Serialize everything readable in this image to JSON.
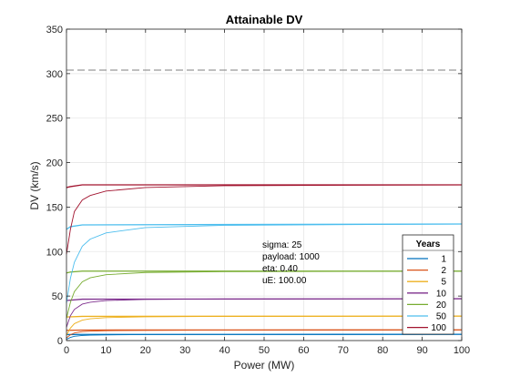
{
  "chart_data": {
    "type": "line",
    "title": "Attainable DV",
    "xlabel": "Power (MW)",
    "ylabel": "DV (km/s)",
    "xlim": [
      0,
      100
    ],
    "ylim": [
      0,
      350
    ],
    "xticks": [
      0,
      10,
      20,
      30,
      40,
      50,
      60,
      70,
      80,
      90,
      100
    ],
    "yticks": [
      0,
      50,
      100,
      150,
      200,
      250,
      300,
      350
    ],
    "xtick_labels": [
      "0",
      "10",
      "20",
      "30",
      "40",
      "50",
      "60",
      "70",
      "80",
      "90",
      "100"
    ],
    "ytick_labels": [
      "0",
      "50",
      "100",
      "150",
      "200",
      "250",
      "300",
      "350"
    ],
    "grid": true,
    "legend": {
      "title": "Years",
      "location": "lower-right",
      "entries": [
        "1",
        "2",
        "5",
        "10",
        "20",
        "50",
        "100"
      ]
    },
    "annotation": [
      "sigma: 25",
      "payload: 1000",
      "eta: 0.40",
      "uE: 100.00"
    ],
    "reference_line": {
      "y": 304,
      "style": "dashed",
      "color": "#7f7f7f"
    },
    "series": [
      {
        "name": "1",
        "color": "#0072BD",
        "curves": [
          {
            "x": [
              0,
              4,
              100
            ],
            "y": [
              6.7,
              6.9,
              7.0
            ]
          },
          {
            "x": [
              0,
              1,
              2,
              4,
              6,
              10,
              20,
              40,
              100
            ],
            "y": [
              1.5,
              3.5,
              4.8,
              5.7,
              6.1,
              6.4,
              6.7,
              6.85,
              6.95
            ]
          }
        ]
      },
      {
        "name": "2",
        "color": "#D95319",
        "curves": [
          {
            "x": [
              0,
              4,
              100
            ],
            "y": [
              11.5,
              11.8,
              12.0
            ]
          },
          {
            "x": [
              0,
              1,
              2,
              4,
              6,
              10,
              20,
              40,
              100
            ],
            "y": [
              3,
              6.5,
              8.5,
              10,
              10.6,
              11.1,
              11.5,
              11.8,
              11.95
            ]
          }
        ]
      },
      {
        "name": "5",
        "color": "#EDB120",
        "curves": [
          {
            "x": [
              0,
              4,
              100
            ],
            "y": [
              26.5,
              27.2,
              27.5
            ]
          },
          {
            "x": [
              0,
              1,
              2,
              4,
              6,
              10,
              20,
              40,
              100
            ],
            "y": [
              6,
              14,
              19,
              23,
              24.5,
              25.8,
              26.7,
              27.2,
              27.5
            ]
          }
        ]
      },
      {
        "name": "10",
        "color": "#7E2F8E",
        "curves": [
          {
            "x": [
              0,
              4,
              100
            ],
            "y": [
              45,
              46.5,
              47
            ]
          },
          {
            "x": [
              0,
              1,
              2,
              4,
              6,
              10,
              20,
              40,
              100
            ],
            "y": [
              15,
              28,
              35,
              41,
              43,
              45,
              46.2,
              46.8,
              47
            ]
          }
        ]
      },
      {
        "name": "20",
        "color": "#77AC30",
        "curves": [
          {
            "x": [
              0,
              1,
              4,
              100
            ],
            "y": [
              76,
              77,
              78,
              78
            ]
          },
          {
            "x": [
              0,
              1,
              2,
              4,
              6,
              10,
              20,
              40,
              100
            ],
            "y": [
              25,
              43,
              55,
              66,
              70.5,
              74,
              76.5,
              77.5,
              78
            ]
          }
        ]
      },
      {
        "name": "50",
        "color": "#4DBEEE",
        "curves": [
          {
            "x": [
              0,
              1,
              4,
              100
            ],
            "y": [
              125,
              128,
              130,
              131
            ]
          },
          {
            "x": [
              0,
              1,
              2,
              4,
              6,
              10,
              20,
              40,
              100
            ],
            "y": [
              42,
              70,
              88,
              106,
              114,
              121,
              127,
              129.5,
              131
            ]
          }
        ]
      },
      {
        "name": "100",
        "color": "#A2142F",
        "curves": [
          {
            "x": [
              0,
              1,
              4,
              100
            ],
            "y": [
              172,
              173,
              175,
              175
            ]
          },
          {
            "x": [
              0,
              1,
              2,
              4,
              6,
              10,
              20,
              40,
              100
            ],
            "y": [
              97,
              125,
              145,
              158,
              163,
              168,
              172,
              174,
              175
            ]
          }
        ]
      }
    ]
  }
}
